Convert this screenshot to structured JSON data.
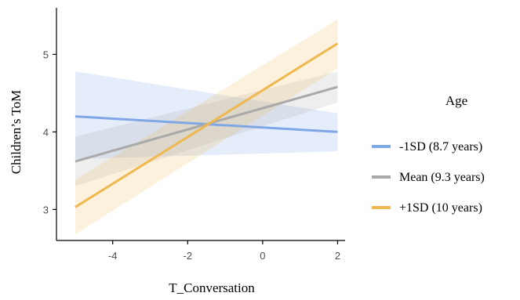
{
  "chart_data": {
    "type": "line",
    "xlabel": "T_Conversation",
    "ylabel": "Children’s ToM",
    "x_ticks": [
      "-4",
      "-2",
      "0",
      "2"
    ],
    "y_ticks": [
      "3",
      "4",
      "5"
    ],
    "xlim": [
      -5.5,
      2.2
    ],
    "ylim": [
      2.6,
      5.6
    ],
    "grid": false,
    "legend": {
      "title": "Age",
      "placement": "right"
    },
    "series": [
      {
        "name": "-1SD (8.7 years)",
        "color": "#7fa7e6",
        "x": [
          -5.0,
          2.0
        ],
        "y": [
          4.2,
          4.0
        ],
        "ci_lower": [
          3.65,
          3.75
        ],
        "ci_upper": [
          4.78,
          4.24
        ]
      },
      {
        "name": "Mean (9.3 years)",
        "color": "#a9a9a9",
        "x": [
          -5.0,
          2.0
        ],
        "y": [
          3.62,
          4.58
        ],
        "ci_lower": [
          3.3,
          4.38
        ],
        "ci_upper": [
          3.94,
          4.78
        ]
      },
      {
        "name": "+1SD (10 years)",
        "color": "#efb84f",
        "x": [
          -5.0,
          2.0
        ],
        "y": [
          3.03,
          5.14
        ],
        "ci_lower": [
          2.68,
          4.82
        ],
        "ci_upper": [
          3.38,
          5.45
        ]
      }
    ]
  }
}
